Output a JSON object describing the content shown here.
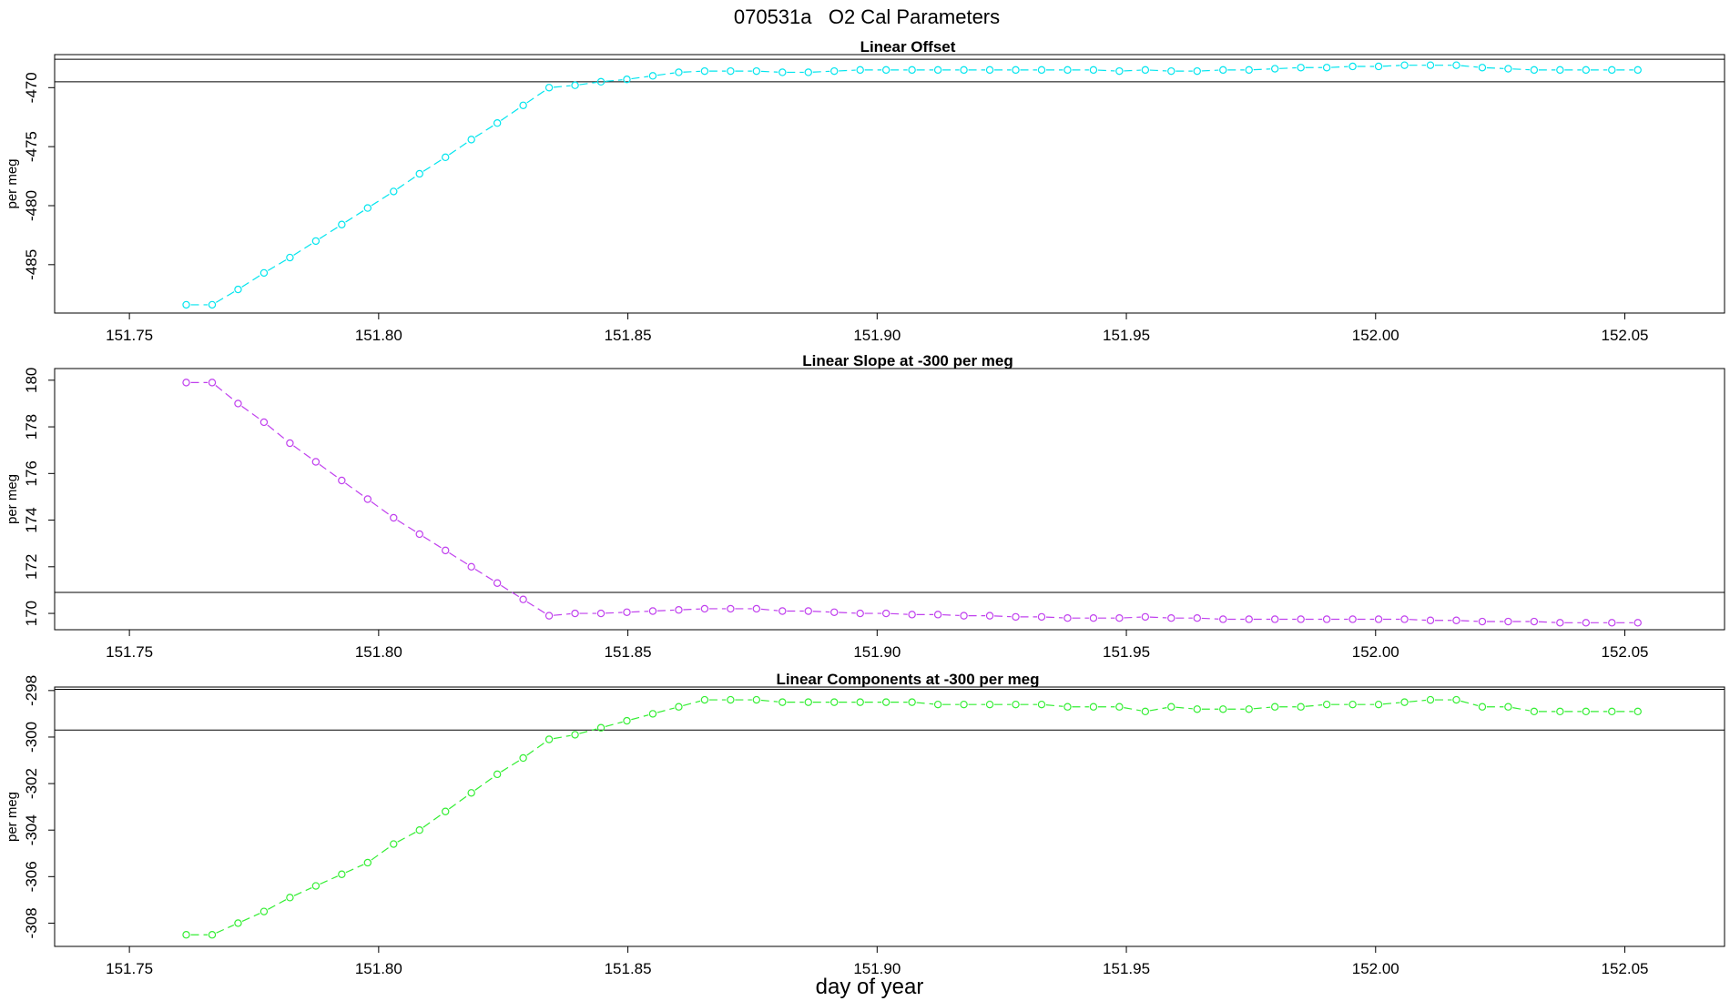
{
  "figure": {
    "title": "070531a   O2 Cal Parameters",
    "xlabel": "day of year"
  },
  "chart_data": [
    {
      "type": "line",
      "title": "Linear Offset",
      "xlabel": "",
      "ylabel": "per meg",
      "color": "#00e5ee",
      "marker": "circle",
      "line_style": "dashed",
      "xlim": [
        151.735,
        152.07
      ],
      "ylim": [
        -489.1,
        -467.2
      ],
      "x_ticks": [
        151.75,
        151.8,
        151.85,
        151.9,
        151.95,
        152.0,
        152.05
      ],
      "x_tick_labels": [
        "151.75",
        "151.80",
        "151.85",
        "151.90",
        "151.95",
        "152.00",
        "152.05"
      ],
      "y_ticks": [
        -485,
        -480,
        -475,
        -470
      ],
      "y_tick_labels": [
        "-485",
        "-480",
        "-475",
        "-470"
      ],
      "reference_lines": [
        -469.5,
        -467.6
      ],
      "x": [
        151.7614,
        151.7666,
        151.7718,
        151.777,
        151.7822,
        151.7874,
        151.7926,
        151.7978,
        151.803,
        151.8082,
        151.8134,
        151.8186,
        151.8238,
        151.829,
        151.8342,
        151.8394,
        151.8446,
        151.8498,
        151.855,
        151.8602,
        151.8654,
        151.8706,
        151.8758,
        151.881,
        151.8862,
        151.8914,
        151.8966,
        151.9018,
        151.907,
        151.9122,
        151.9174,
        151.9226,
        151.9278,
        151.933,
        151.9382,
        151.9434,
        151.9486,
        151.9538,
        151.959,
        151.9642,
        151.9694,
        151.9746,
        151.9798,
        151.985,
        151.9902,
        151.9954,
        152.0006,
        152.0058,
        152.011,
        152.0162,
        152.0214,
        152.0266,
        152.0318,
        152.037,
        152.0422,
        152.0474,
        152.0526
      ],
      "y": [
        -488.4,
        -488.4,
        -487.1,
        -485.7,
        -484.4,
        -483.0,
        -481.6,
        -480.2,
        -478.8,
        -477.3,
        -475.9,
        -474.4,
        -473.0,
        -471.5,
        -470.0,
        -469.8,
        -469.5,
        -469.3,
        -469.0,
        -468.7,
        -468.6,
        -468.6,
        -468.6,
        -468.7,
        -468.7,
        -468.6,
        -468.5,
        -468.5,
        -468.5,
        -468.5,
        -468.5,
        -468.5,
        -468.5,
        -468.5,
        -468.5,
        -468.5,
        -468.6,
        -468.5,
        -468.6,
        -468.6,
        -468.5,
        -468.5,
        -468.4,
        -468.3,
        -468.3,
        -468.2,
        -468.2,
        -468.1,
        -468.1,
        -468.1,
        -468.3,
        -468.4,
        -468.5,
        -468.5,
        -468.5,
        -468.5,
        -468.5
      ]
    },
    {
      "type": "line",
      "title": "Linear Slope at -300 per meg",
      "xlabel": "",
      "ylabel": "per meg",
      "color": "#c040ee",
      "marker": "circle",
      "line_style": "dashed",
      "xlim": [
        151.735,
        152.07
      ],
      "ylim": [
        169.3,
        180.5
      ],
      "x_ticks": [
        151.75,
        151.8,
        151.85,
        151.9,
        151.95,
        152.0,
        152.05
      ],
      "x_tick_labels": [
        "151.75",
        "151.80",
        "151.85",
        "151.90",
        "151.95",
        "152.00",
        "152.05"
      ],
      "y_ticks": [
        170,
        172,
        174,
        176,
        178,
        180
      ],
      "y_tick_labels": [
        "170",
        "172",
        "174",
        "176",
        "178",
        "180"
      ],
      "reference_lines": [
        170.9
      ],
      "x": [
        151.7614,
        151.7666,
        151.7718,
        151.777,
        151.7822,
        151.7874,
        151.7926,
        151.7978,
        151.803,
        151.8082,
        151.8134,
        151.8186,
        151.8238,
        151.829,
        151.8342,
        151.8394,
        151.8446,
        151.8498,
        151.855,
        151.8602,
        151.8654,
        151.8706,
        151.8758,
        151.881,
        151.8862,
        151.8914,
        151.8966,
        151.9018,
        151.907,
        151.9122,
        151.9174,
        151.9226,
        151.9278,
        151.933,
        151.9382,
        151.9434,
        151.9486,
        151.9538,
        151.959,
        151.9642,
        151.9694,
        151.9746,
        151.9798,
        151.985,
        151.9902,
        151.9954,
        152.0006,
        152.0058,
        152.011,
        152.0162,
        152.0214,
        152.0266,
        152.0318,
        152.037,
        152.0422,
        152.0474,
        152.0526
      ],
      "y": [
        179.9,
        179.9,
        179.0,
        178.2,
        177.3,
        176.5,
        175.7,
        174.9,
        174.1,
        173.4,
        172.7,
        172.0,
        171.3,
        170.6,
        169.9,
        170.0,
        170.0,
        170.05,
        170.1,
        170.15,
        170.2,
        170.2,
        170.2,
        170.1,
        170.1,
        170.05,
        170.0,
        170.0,
        169.95,
        169.95,
        169.9,
        169.9,
        169.85,
        169.85,
        169.8,
        169.8,
        169.8,
        169.85,
        169.8,
        169.8,
        169.75,
        169.75,
        169.75,
        169.75,
        169.75,
        169.75,
        169.75,
        169.75,
        169.7,
        169.7,
        169.65,
        169.65,
        169.65,
        169.6,
        169.6,
        169.6,
        169.6
      ]
    },
    {
      "type": "line",
      "title": "Linear Components at -300 per meg",
      "xlabel": "",
      "ylabel": "per meg",
      "color": "#33ee33",
      "marker": "circle",
      "line_style": "dashed",
      "xlim": [
        151.735,
        152.07
      ],
      "ylim": [
        -309.0,
        -297.85
      ],
      "x_ticks": [
        151.75,
        151.8,
        151.85,
        151.9,
        151.95,
        152.0,
        152.05
      ],
      "x_tick_labels": [
        "151.75",
        "151.80",
        "151.85",
        "151.90",
        "151.95",
        "152.00",
        "152.05"
      ],
      "y_ticks": [
        -308,
        -306,
        -304,
        -302,
        -300,
        -298
      ],
      "y_tick_labels": [
        "-308",
        "-306",
        "-304",
        "-302",
        "-300",
        "-298"
      ],
      "reference_lines": [
        -299.7,
        -297.95
      ],
      "x": [
        151.7614,
        151.7666,
        151.7718,
        151.777,
        151.7822,
        151.7874,
        151.7926,
        151.7978,
        151.803,
        151.8082,
        151.8134,
        151.8186,
        151.8238,
        151.829,
        151.8342,
        151.8394,
        151.8446,
        151.8498,
        151.855,
        151.8602,
        151.8654,
        151.8706,
        151.8758,
        151.881,
        151.8862,
        151.8914,
        151.8966,
        151.9018,
        151.907,
        151.9122,
        151.9174,
        151.9226,
        151.9278,
        151.933,
        151.9382,
        151.9434,
        151.9486,
        151.9538,
        151.959,
        151.9642,
        151.9694,
        151.9746,
        151.9798,
        151.985,
        151.9902,
        151.9954,
        152.0006,
        152.0058,
        152.011,
        152.0162,
        152.0214,
        152.0266,
        152.0318,
        152.037,
        152.0422,
        152.0474,
        152.0526
      ],
      "y": [
        -308.5,
        -308.5,
        -308.0,
        -307.5,
        -306.9,
        -306.4,
        -305.9,
        -305.4,
        -304.6,
        -304.0,
        -303.2,
        -302.4,
        -301.6,
        -300.9,
        -300.1,
        -299.9,
        -299.6,
        -299.3,
        -299.0,
        -298.7,
        -298.4,
        -298.4,
        -298.4,
        -298.5,
        -298.5,
        -298.5,
        -298.5,
        -298.5,
        -298.5,
        -298.6,
        -298.6,
        -298.6,
        -298.6,
        -298.6,
        -298.7,
        -298.7,
        -298.7,
        -298.9,
        -298.7,
        -298.8,
        -298.8,
        -298.8,
        -298.7,
        -298.7,
        -298.6,
        -298.6,
        -298.6,
        -298.5,
        -298.4,
        -298.4,
        -298.7,
        -298.7,
        -298.9,
        -298.9,
        -298.9,
        -298.9,
        -298.9
      ]
    }
  ]
}
